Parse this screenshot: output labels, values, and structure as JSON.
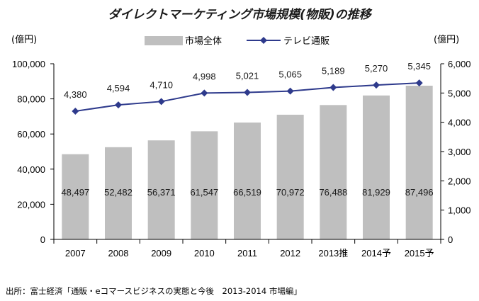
{
  "chart_data": {
    "type": "bar+line",
    "title": "ダイレクトマーケティング市場規模(物販)の推移",
    "categories": [
      "2007",
      "2008",
      "2009",
      "2010",
      "2011",
      "2012",
      "2013推",
      "2014予",
      "2015予"
    ],
    "series": [
      {
        "name": "市場全体",
        "type": "bar",
        "axis": "left",
        "color": "#bfbfbf",
        "values": [
          48497,
          52482,
          56371,
          61547,
          66519,
          70972,
          76488,
          81929,
          87496
        ],
        "labels": [
          "48,497",
          "52,482",
          "56,371",
          "61,547",
          "66,519",
          "70,972",
          "76,488",
          "81,929",
          "87,496"
        ]
      },
      {
        "name": "テレビ通販",
        "type": "line",
        "axis": "right",
        "color": "#2e3a8c",
        "marker": "diamond",
        "values": [
          4380,
          4594,
          4710,
          4998,
          5021,
          5065,
          5189,
          5270,
          5345
        ],
        "labels": [
          "4,380",
          "4,594",
          "4,710",
          "4,998",
          "5,021",
          "5,065",
          "5,189",
          "5,270",
          "5,345"
        ]
      }
    ],
    "left_axis": {
      "unit": "(億円)",
      "ylim": [
        0,
        100000
      ],
      "ticks": [
        "0",
        "20,000",
        "40,000",
        "60,000",
        "80,000",
        "100,000"
      ]
    },
    "right_axis": {
      "unit": "(億円)",
      "ylim": [
        0,
        6000
      ],
      "ticks": [
        "0",
        "1,000",
        "2,000",
        "3,000",
        "4,000",
        "5,000",
        "6,000"
      ]
    },
    "legend_position": "top-center",
    "grid": false
  },
  "source": "出所：富士経済「通販・eコマースビジネスの実態と今後　2013-2014 市場編」"
}
